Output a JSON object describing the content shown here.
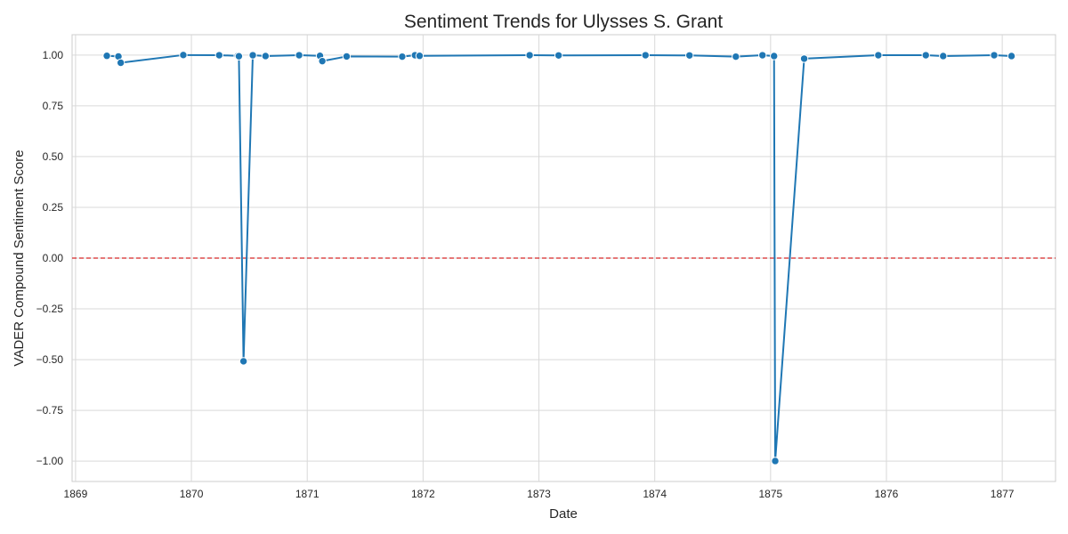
{
  "chart_data": {
    "type": "line",
    "title": "Sentiment Trends for Ulysses S. Grant",
    "xlabel": "Date",
    "ylabel": "VADER Compound Sentiment Score",
    "x_ticks": [
      "1869",
      "1870",
      "1871",
      "1872",
      "1873",
      "1874",
      "1875",
      "1876",
      "1877"
    ],
    "y_ticks": [
      "1.00",
      "0.75",
      "0.50",
      "0.25",
      "0.00",
      "−0.25",
      "−0.50",
      "−0.75",
      "−1.00"
    ],
    "xlim": [
      1868.97,
      1877.46
    ],
    "ylim": [
      -1.1,
      1.1
    ],
    "grid": true,
    "reference_line": {
      "y": 0,
      "color": "#d62728",
      "style": "dashed"
    },
    "series_color": "#1f77b4",
    "x": [
      1869.27,
      1869.37,
      1869.39,
      1869.93,
      1870.24,
      1870.4,
      1870.41,
      1870.45,
      1870.53,
      1870.64,
      1870.93,
      1871.11,
      1871.13,
      1871.34,
      1871.82,
      1871.93,
      1871.97,
      1872.92,
      1873.17,
      1873.92,
      1874.3,
      1874.7,
      1874.93,
      1875.03,
      1875.04,
      1875.29,
      1875.93,
      1876.34,
      1876.49,
      1876.93,
      1877.08
    ],
    "y": [
      0.996,
      0.993,
      0.962,
      1.0,
      0.999,
      0.996,
      0.994,
      -0.508,
      0.999,
      0.995,
      0.999,
      0.996,
      0.97,
      0.993,
      0.992,
      0.999,
      0.996,
      0.999,
      0.998,
      0.999,
      0.998,
      0.992,
      0.999,
      0.995,
      -0.999,
      0.982,
      0.999,
      0.999,
      0.995,
      0.999,
      0.995
    ]
  }
}
